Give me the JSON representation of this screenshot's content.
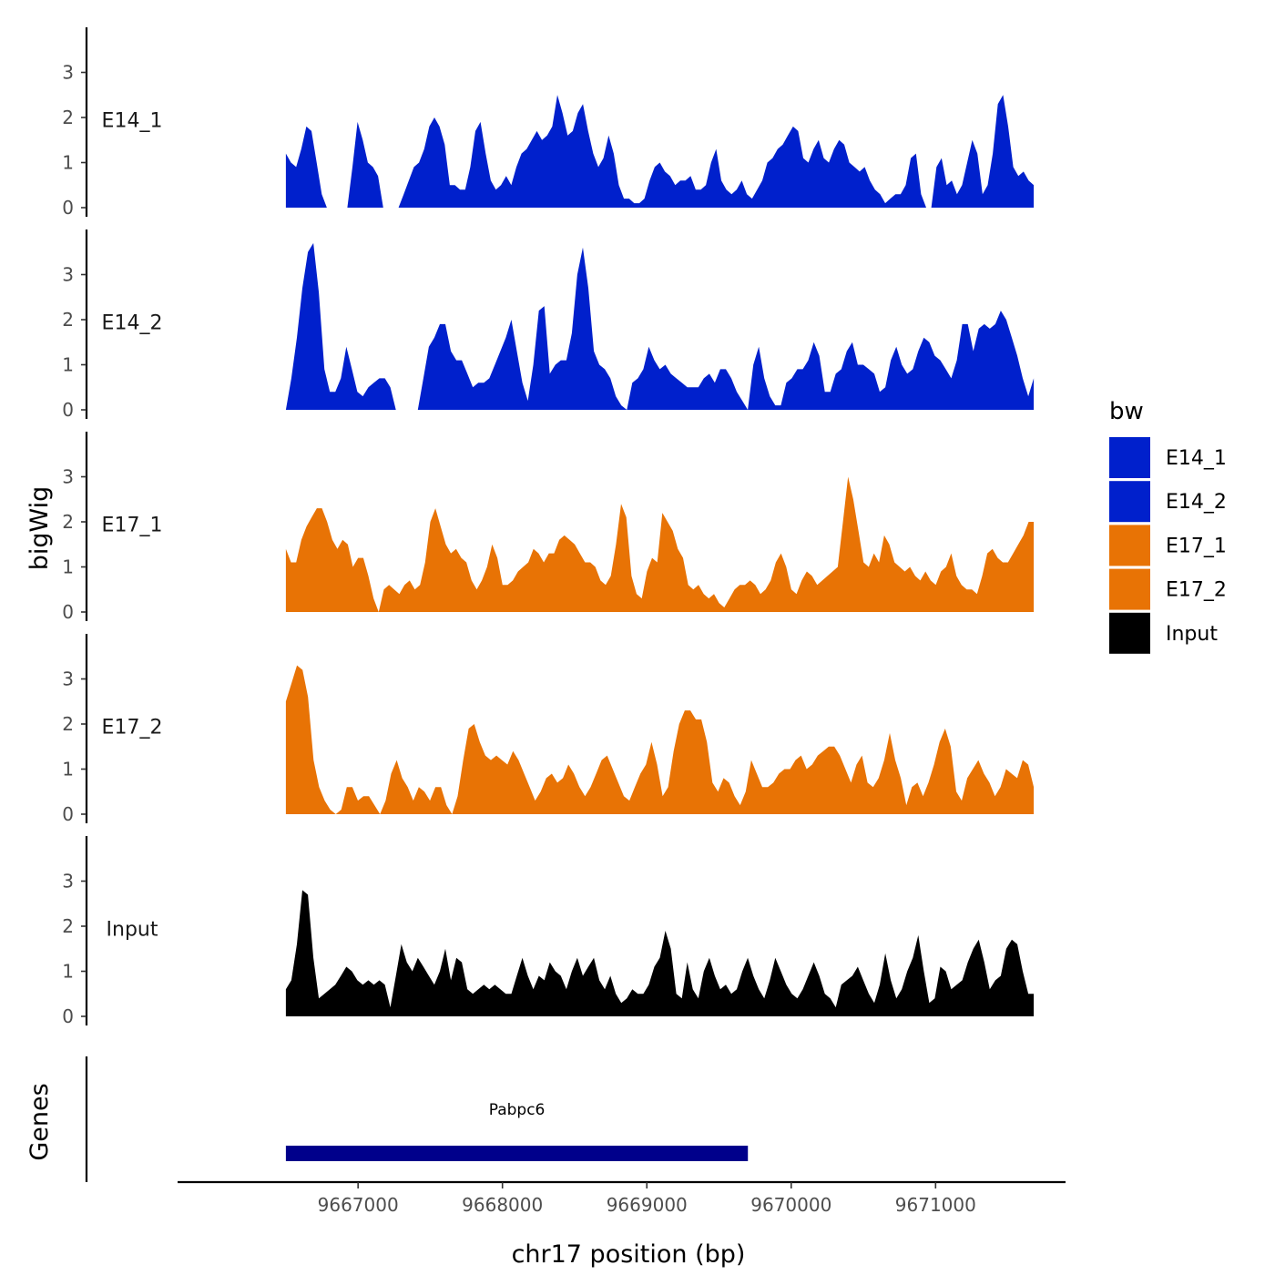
{
  "chart_data": {
    "type": "area",
    "ylabel": "bigWig",
    "xlabel": "chr17 position (bp)",
    "x_range": [
      9666500,
      9671680
    ],
    "xlim": [
      9665750,
      9671900
    ],
    "x_ticks": [
      9667000,
      9668000,
      9669000,
      9670000,
      9671000
    ],
    "x_tick_labels": [
      "9667000",
      "9668000",
      "9669000",
      "9670000",
      "9671000"
    ],
    "ylim": [
      0,
      4
    ],
    "y_ticks": [
      0,
      1,
      2,
      3
    ],
    "y_tick_labels": [
      "0",
      "1",
      "2",
      "3"
    ],
    "legend": {
      "title": "bw",
      "position": "right",
      "items": [
        {
          "label": "E14_1",
          "color": "#0020CC"
        },
        {
          "label": "E14_2",
          "color": "#0020CC"
        },
        {
          "label": "E17_1",
          "color": "#E87305"
        },
        {
          "label": "E17_2",
          "color": "#E87305"
        },
        {
          "label": "Input",
          "color": "#000000"
        }
      ]
    },
    "series": [
      {
        "name": "E14_1",
        "color": "#0020CC",
        "values": [
          1.2,
          1.0,
          0.9,
          1.3,
          1.8,
          1.7,
          1.0,
          0.3,
          0,
          0,
          0,
          0,
          0,
          0.9,
          1.9,
          1.5,
          1.0,
          0.9,
          0.7,
          0,
          0,
          0,
          0,
          0.3,
          0.6,
          0.9,
          1.0,
          1.3,
          1.8,
          2.0,
          1.8,
          1.4,
          0.5,
          0.5,
          0.4,
          0.4,
          0.9,
          1.7,
          1.9,
          1.2,
          0.6,
          0.4,
          0.5,
          0.7,
          0.5,
          0.9,
          1.2,
          1.3,
          1.5,
          1.7,
          1.5,
          1.6,
          1.8,
          2.5,
          2.1,
          1.6,
          1.7,
          2.1,
          2.3,
          1.7,
          1.2,
          0.9,
          1.1,
          1.6,
          1.2,
          0.5,
          0.2,
          0.2,
          0.1,
          0.1,
          0.2,
          0.6,
          0.9,
          1.0,
          0.8,
          0.7,
          0.5,
          0.6,
          0.6,
          0.7,
          0.4,
          0.4,
          0.5,
          1.0,
          1.3,
          0.6,
          0.4,
          0.3,
          0.4,
          0.6,
          0.3,
          0.2,
          0.4,
          0.6,
          1.0,
          1.1,
          1.3,
          1.4,
          1.6,
          1.8,
          1.7,
          1.1,
          1.0,
          1.3,
          1.5,
          1.1,
          1.0,
          1.3,
          1.5,
          1.4,
          1.0,
          0.9,
          0.8,
          0.9,
          0.6,
          0.4,
          0.3,
          0.1,
          0.2,
          0.3,
          0.3,
          0.5,
          1.1,
          1.2,
          0.3,
          0,
          0,
          0.9,
          1.1,
          0.5,
          0.6,
          0.3,
          0.5,
          1.0,
          1.5,
          1.2,
          0.3,
          0.5,
          1.2,
          2.3,
          2.5,
          1.8,
          0.9,
          0.7,
          0.8,
          0.6,
          0.5
        ]
      },
      {
        "name": "E14_2",
        "color": "#0020CC",
        "values": [
          0,
          0.7,
          1.6,
          2.7,
          3.5,
          3.7,
          2.6,
          0.9,
          0.4,
          0.4,
          0.7,
          1.4,
          0.9,
          0.4,
          0.3,
          0.5,
          0.6,
          0.7,
          0.7,
          0.5,
          0,
          0,
          0,
          0,
          0,
          0.7,
          1.4,
          1.6,
          1.9,
          1.9,
          1.3,
          1.1,
          1.1,
          0.8,
          0.5,
          0.6,
          0.6,
          0.7,
          1.0,
          1.3,
          1.6,
          2.0,
          1.3,
          0.6,
          0.2,
          1.0,
          2.2,
          2.3,
          0.8,
          1.0,
          1.1,
          1.1,
          1.7,
          3.0,
          3.6,
          2.7,
          1.3,
          1.0,
          0.9,
          0.7,
          0.3,
          0.1,
          0,
          0.6,
          0.7,
          0.9,
          1.4,
          1.1,
          0.9,
          1.0,
          0.8,
          0.7,
          0.6,
          0.5,
          0.5,
          0.5,
          0.7,
          0.8,
          0.6,
          0.9,
          0.9,
          0.7,
          0.4,
          0.2,
          0,
          1.0,
          1.4,
          0.7,
          0.3,
          0.1,
          0.1,
          0.6,
          0.7,
          0.9,
          0.9,
          1.1,
          1.5,
          1.2,
          0.4,
          0.4,
          0.8,
          0.9,
          1.3,
          1.5,
          1.0,
          1.0,
          0.9,
          0.8,
          0.4,
          0.5,
          1.1,
          1.4,
          1.0,
          0.8,
          0.9,
          1.3,
          1.6,
          1.5,
          1.2,
          1.1,
          0.9,
          0.7,
          1.1,
          1.9,
          1.9,
          1.3,
          1.8,
          1.9,
          1.8,
          1.9,
          2.2,
          2.0,
          1.6,
          1.2,
          0.7,
          0.3,
          0.7
        ]
      },
      {
        "name": "E17_1",
        "color": "#E87305",
        "values": [
          1.4,
          1.1,
          1.1,
          1.6,
          1.9,
          2.1,
          2.3,
          2.3,
          2.0,
          1.6,
          1.4,
          1.6,
          1.5,
          1.0,
          1.2,
          1.2,
          0.8,
          0.3,
          0,
          0.5,
          0.6,
          0.5,
          0.4,
          0.6,
          0.7,
          0.5,
          0.6,
          1.1,
          2.0,
          2.3,
          1.9,
          1.5,
          1.3,
          1.4,
          1.2,
          1.1,
          0.7,
          0.5,
          0.7,
          1.0,
          1.5,
          1.2,
          0.6,
          0.6,
          0.7,
          0.9,
          1.0,
          1.1,
          1.4,
          1.3,
          1.1,
          1.3,
          1.3,
          1.6,
          1.7,
          1.6,
          1.5,
          1.3,
          1.1,
          1.1,
          1.0,
          0.7,
          0.6,
          0.8,
          1.5,
          2.4,
          2.1,
          0.8,
          0.4,
          0.3,
          0.9,
          1.2,
          1.1,
          2.2,
          2.0,
          1.8,
          1.4,
          1.2,
          0.6,
          0.5,
          0.6,
          0.4,
          0.3,
          0.4,
          0.2,
          0.1,
          0.3,
          0.5,
          0.6,
          0.6,
          0.7,
          0.6,
          0.4,
          0.5,
          0.7,
          1.1,
          1.3,
          1.0,
          0.5,
          0.4,
          0.7,
          0.9,
          0.8,
          0.6,
          0.7,
          0.8,
          0.9,
          1.0,
          2.0,
          3.0,
          2.5,
          1.8,
          1.1,
          1.0,
          1.3,
          1.1,
          1.7,
          1.5,
          1.1,
          1.0,
          0.9,
          1.0,
          0.8,
          0.7,
          0.9,
          0.7,
          0.6,
          0.9,
          1.0,
          1.3,
          0.8,
          0.6,
          0.5,
          0.5,
          0.4,
          0.8,
          1.3,
          1.4,
          1.2,
          1.1,
          1.1,
          1.3,
          1.5,
          1.7,
          2.0,
          2.0
        ]
      },
      {
        "name": "E17_2",
        "color": "#E87305",
        "values": [
          2.5,
          2.9,
          3.3,
          3.2,
          2.6,
          1.2,
          0.6,
          0.3,
          0.1,
          0,
          0.1,
          0.6,
          0.6,
          0.3,
          0.4,
          0.4,
          0.2,
          0,
          0.3,
          0.9,
          1.2,
          0.8,
          0.6,
          0.3,
          0.6,
          0.5,
          0.3,
          0.6,
          0.6,
          0.2,
          0,
          0.4,
          1.2,
          1.9,
          2.0,
          1.6,
          1.3,
          1.2,
          1.3,
          1.2,
          1.1,
          1.4,
          1.2,
          0.9,
          0.6,
          0.3,
          0.5,
          0.8,
          0.9,
          0.7,
          0.8,
          1.1,
          0.9,
          0.6,
          0.4,
          0.6,
          0.9,
          1.2,
          1.3,
          1.0,
          0.7,
          0.4,
          0.3,
          0.6,
          0.9,
          1.1,
          1.6,
          1.1,
          0.4,
          0.6,
          1.4,
          2.0,
          2.3,
          2.3,
          2.1,
          2.1,
          1.6,
          0.7,
          0.5,
          0.8,
          0.7,
          0.4,
          0.2,
          0.5,
          1.2,
          0.9,
          0.6,
          0.6,
          0.7,
          0.9,
          1.0,
          1.0,
          1.2,
          1.3,
          1.0,
          1.1,
          1.3,
          1.4,
          1.5,
          1.5,
          1.3,
          1.0,
          0.7,
          1.1,
          1.3,
          0.7,
          0.6,
          0.8,
          1.2,
          1.8,
          1.2,
          0.8,
          0.2,
          0.6,
          0.7,
          0.4,
          0.7,
          1.1,
          1.6,
          1.9,
          1.5,
          0.5,
          0.3,
          0.8,
          1.0,
          1.2,
          0.9,
          0.7,
          0.4,
          0.6,
          1.0,
          0.9,
          0.8,
          1.2,
          1.1,
          0.6
        ]
      },
      {
        "name": "Input",
        "color": "#000000",
        "values": [
          0.6,
          0.8,
          1.6,
          2.8,
          2.7,
          1.3,
          0.4,
          0.5,
          0.6,
          0.7,
          0.9,
          1.1,
          1.0,
          0.8,
          0.7,
          0.8,
          0.7,
          0.8,
          0.7,
          0.2,
          0.9,
          1.6,
          1.2,
          1.0,
          1.3,
          1.1,
          0.9,
          0.7,
          1.0,
          1.5,
          0.8,
          1.3,
          1.2,
          0.6,
          0.5,
          0.6,
          0.7,
          0.6,
          0.7,
          0.6,
          0.5,
          0.5,
          0.9,
          1.3,
          0.9,
          0.6,
          0.9,
          0.8,
          1.2,
          1.0,
          0.9,
          0.6,
          1.0,
          1.3,
          0.9,
          1.1,
          1.3,
          0.8,
          0.6,
          0.9,
          0.5,
          0.3,
          0.4,
          0.6,
          0.5,
          0.5,
          0.7,
          1.1,
          1.3,
          1.9,
          1.5,
          0.5,
          0.4,
          1.2,
          0.6,
          0.4,
          1.0,
          1.3,
          0.9,
          0.6,
          0.7,
          0.5,
          0.6,
          1.0,
          1.3,
          0.9,
          0.6,
          0.4,
          0.8,
          1.3,
          1.0,
          0.7,
          0.5,
          0.4,
          0.6,
          0.9,
          1.2,
          0.9,
          0.5,
          0.4,
          0.2,
          0.7,
          0.8,
          0.9,
          1.1,
          0.8,
          0.5,
          0.3,
          0.7,
          1.4,
          0.8,
          0.4,
          0.6,
          1.0,
          1.3,
          1.8,
          1.0,
          0.3,
          0.4,
          1.1,
          1.0,
          0.6,
          0.7,
          0.8,
          1.2,
          1.5,
          1.7,
          1.2,
          0.6,
          0.8,
          0.9,
          1.5,
          1.7,
          1.6,
          1.0,
          0.5,
          0.5
        ]
      }
    ],
    "genes": [
      {
        "name": "Pabpc6",
        "start": 9666500,
        "end": 9669700,
        "color": "#00008B"
      }
    ],
    "genes_track_label": "Genes"
  }
}
